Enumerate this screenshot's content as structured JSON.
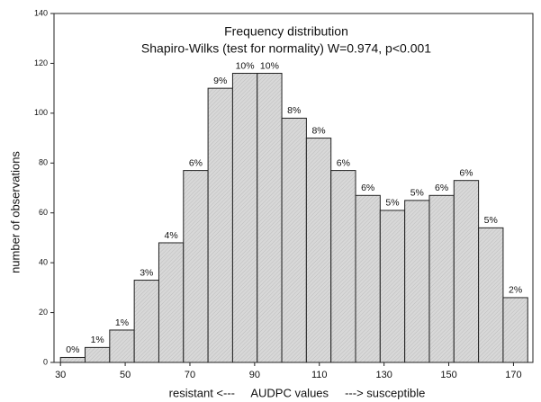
{
  "chart_data": {
    "type": "histogram",
    "title": "Frequency distribution",
    "subtitle": "Shapiro-Wilks (test for normality) W=0.974, p<0.001",
    "xlabel": "resistant <---     AUDPC values     ---> susceptible",
    "ylabel": "number of observations",
    "bins": [
      30,
      37.6,
      45.2,
      52.8,
      60.4,
      68,
      75.6,
      83.2,
      90.8,
      98.4,
      106,
      113.6,
      121.2,
      128.8,
      136.4,
      144,
      151.6,
      159.2,
      166.8,
      174.4
    ],
    "values": [
      2,
      6,
      13,
      33,
      48,
      77,
      110,
      116,
      116,
      98,
      90,
      77,
      67,
      61,
      65,
      67,
      73,
      54,
      26
    ],
    "bar_labels": [
      "0%",
      "1%",
      "1%",
      "3%",
      "4%",
      "6%",
      "9%",
      "10%",
      "10%",
      "8%",
      "8%",
      "6%",
      "6%",
      "5%",
      "5%",
      "6%",
      "6%",
      "5%",
      "2%"
    ],
    "color": "#d4d4d4",
    "xlim": [
      28,
      176
    ],
    "xticks": [
      30,
      50,
      70,
      90,
      110,
      130,
      150,
      170
    ],
    "ylim": [
      0,
      140
    ],
    "yticks": [
      0,
      20,
      40,
      60,
      80,
      100,
      120,
      140
    ]
  }
}
